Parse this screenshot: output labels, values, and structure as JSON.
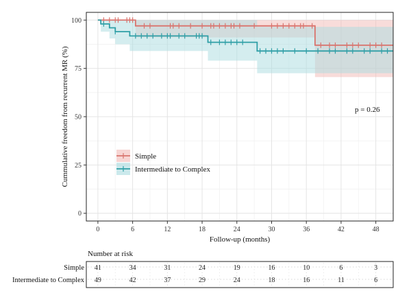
{
  "chart_data": {
    "type": "line",
    "step": true,
    "xlabel": "Follow-up (months)",
    "ylabel": "Cummulative freedom from recurrent MR (%)",
    "xlim": [
      -2,
      51
    ],
    "ylim": [
      -4,
      104
    ],
    "xticks": [
      0,
      6,
      12,
      18,
      24,
      30,
      36,
      42,
      48
    ],
    "yticks": [
      0,
      25,
      50,
      75,
      100
    ],
    "grid": true,
    "annotation": "p = 0.26",
    "legend_position": "left-middle",
    "series": [
      {
        "name": "Simple",
        "color": "#d9736d",
        "band_color": "#f2b9b5",
        "steps": [
          [
            0,
            100
          ],
          [
            6.5,
            97.0
          ],
          [
            37.5,
            87.0
          ],
          [
            51,
            87.0
          ]
        ],
        "ci_steps": [
          [
            0,
            100,
            100
          ],
          [
            6.5,
            100,
            91.0
          ],
          [
            37.5,
            100,
            70.5
          ],
          [
            51,
            100,
            70.5
          ]
        ],
        "censor_x": [
          1,
          2,
          3,
          3.5,
          5,
          5.5,
          6,
          8,
          9,
          12.5,
          13,
          14,
          16,
          18,
          19.5,
          20,
          21,
          22,
          23,
          23.5,
          24.5,
          27,
          30,
          31,
          32,
          33,
          34,
          35,
          35.5,
          37,
          38.5,
          40,
          41,
          43,
          44,
          45,
          47,
          48,
          49
        ]
      },
      {
        "name": "Intermediate to Complex",
        "color": "#2e9ea6",
        "band_color": "#a9dbe0",
        "steps": [
          [
            0,
            100
          ],
          [
            0.5,
            98.0
          ],
          [
            2,
            96.0
          ],
          [
            3,
            94.0
          ],
          [
            5.5,
            91.8
          ],
          [
            19,
            88.5
          ],
          [
            27.5,
            84.0
          ],
          [
            51,
            84.0
          ]
        ],
        "ci_steps": [
          [
            0,
            100,
            100
          ],
          [
            0.5,
            100,
            94.0
          ],
          [
            2,
            100,
            90.5
          ],
          [
            3,
            100,
            87.5
          ],
          [
            5.5,
            100,
            84.0
          ],
          [
            19,
            100,
            79.0
          ],
          [
            27.5,
            96.5,
            72.5
          ],
          [
            51,
            96.5,
            72.5
          ]
        ],
        "censor_x": [
          1,
          3,
          6.5,
          7.5,
          8.5,
          9.5,
          11,
          12,
          12.5,
          14,
          15,
          17,
          17.5,
          18,
          19.5,
          21,
          22,
          23,
          24,
          25,
          28,
          29,
          30,
          31,
          32,
          34,
          36,
          38,
          40,
          41,
          43,
          44,
          46,
          47,
          49,
          50
        ]
      }
    ]
  },
  "legend": {
    "items": [
      {
        "label": "Simple",
        "color": "#d9736d",
        "band": "#f2b9b5"
      },
      {
        "label": "Intermediate to Complex",
        "color": "#2e9ea6",
        "band": "#a9dbe0"
      }
    ]
  },
  "risk_table": {
    "title": "Number at risk",
    "rows": [
      {
        "label": "Simple",
        "values": [
          "41",
          "34",
          "31",
          "24",
          "19",
          "16",
          "10",
          "6",
          "3"
        ]
      },
      {
        "label": "Intermediate to Complex",
        "values": [
          "49",
          "42",
          "37",
          "29",
          "24",
          "18",
          "16",
          "11",
          "6"
        ]
      }
    ]
  }
}
